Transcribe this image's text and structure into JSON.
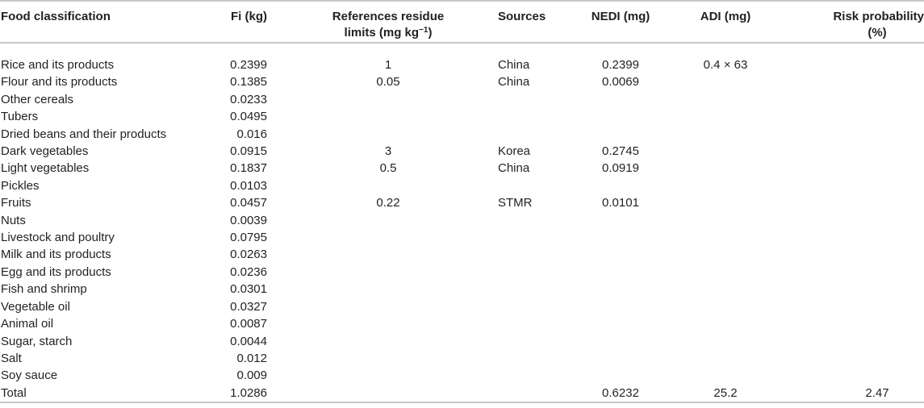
{
  "table": {
    "headers": {
      "food": "Food classification",
      "fi": "Fi (kg)",
      "ref_line1": "References residue",
      "ref_line2": "limits (mg kg",
      "ref_sup": "−1",
      "ref_close": ")",
      "sources": "Sources",
      "nedi": "NEDI (mg)",
      "adi": "ADI (mg)",
      "risk_line1": "Risk probability",
      "risk_line2": "(%)"
    },
    "rows": [
      {
        "food": "Rice and its products",
        "fi": "0.2399",
        "ref": "1",
        "source": "China",
        "nedi": "0.2399",
        "adi": "0.4 × 63",
        "risk": ""
      },
      {
        "food": "Flour and its products",
        "fi": "0.1385",
        "ref": "0.05",
        "source": "China",
        "nedi": "0.0069",
        "adi": "",
        "risk": ""
      },
      {
        "food": "Other cereals",
        "fi": "0.0233",
        "ref": "",
        "source": "",
        "nedi": "",
        "adi": "",
        "risk": ""
      },
      {
        "food": "Tubers",
        "fi": "0.0495",
        "ref": "",
        "source": "",
        "nedi": "",
        "adi": "",
        "risk": ""
      },
      {
        "food": "Dried beans and their products",
        "fi": "0.016",
        "ref": "",
        "source": "",
        "nedi": "",
        "adi": "",
        "risk": ""
      },
      {
        "food": "Dark vegetables",
        "fi": "0.0915",
        "ref": "3",
        "source": "Korea",
        "nedi": "0.2745",
        "adi": "",
        "risk": ""
      },
      {
        "food": "Light vegetables",
        "fi": "0.1837",
        "ref": "0.5",
        "source": "China",
        "nedi": "0.0919",
        "adi": "",
        "risk": ""
      },
      {
        "food": "Pickles",
        "fi": "0.0103",
        "ref": "",
        "source": "",
        "nedi": "",
        "adi": "",
        "risk": ""
      },
      {
        "food": "Fruits",
        "fi": "0.0457",
        "ref": "0.22",
        "source": "STMR",
        "nedi": "0.0101",
        "adi": "",
        "risk": ""
      },
      {
        "food": "Nuts",
        "fi": "0.0039",
        "ref": "",
        "source": "",
        "nedi": "",
        "adi": "",
        "risk": ""
      },
      {
        "food": "Livestock and poultry",
        "fi": "0.0795",
        "ref": "",
        "source": "",
        "nedi": "",
        "adi": "",
        "risk": ""
      },
      {
        "food": "Milk and its products",
        "fi": "0.0263",
        "ref": "",
        "source": "",
        "nedi": "",
        "adi": "",
        "risk": ""
      },
      {
        "food": "Egg and its products",
        "fi": "0.0236",
        "ref": "",
        "source": "",
        "nedi": "",
        "adi": "",
        "risk": ""
      },
      {
        "food": "Fish and shrimp",
        "fi": "0.0301",
        "ref": "",
        "source": "",
        "nedi": "",
        "adi": "",
        "risk": ""
      },
      {
        "food": "Vegetable oil",
        "fi": "0.0327",
        "ref": "",
        "source": "",
        "nedi": "",
        "adi": "",
        "risk": ""
      },
      {
        "food": "Animal oil",
        "fi": "0.0087",
        "ref": "",
        "source": "",
        "nedi": "",
        "adi": "",
        "risk": ""
      },
      {
        "food": "Sugar, starch",
        "fi": "0.0044",
        "ref": "",
        "source": "",
        "nedi": "",
        "adi": "",
        "risk": ""
      },
      {
        "food": "Salt",
        "fi": "0.012",
        "ref": "",
        "source": "",
        "nedi": "",
        "adi": "",
        "risk": ""
      },
      {
        "food": "Soy sauce",
        "fi": "0.009",
        "ref": "",
        "source": "",
        "nedi": "",
        "adi": "",
        "risk": ""
      },
      {
        "food": "Total",
        "fi": "1.0286",
        "ref": "",
        "source": "",
        "nedi": "0.6232",
        "adi": "25.2",
        "risk": "2.47"
      }
    ]
  }
}
